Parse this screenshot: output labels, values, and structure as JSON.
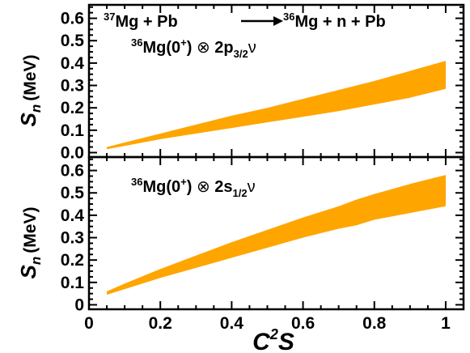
{
  "colors": {
    "band": "#FFA500",
    "axis": "#000000"
  },
  "annotations": {
    "reaction": {
      "a_mass": "37",
      "a_el": "Mg + Pb",
      "b_mass": "36",
      "b_el": "Mg + n + Pb"
    },
    "config_top": {
      "mass": "36",
      "el": "Mg(0",
      "sign": "+",
      "close": ") ",
      "otimes": "⊗",
      "orbital": " 2p",
      "j": "3/2",
      "nu": "ν"
    },
    "config_bottom": {
      "mass": "36",
      "el": "Mg(0",
      "sign": "+",
      "close": ") ",
      "otimes": "⊗",
      "orbital": " 2s",
      "j": "1/2",
      "nu": "ν"
    }
  },
  "axes": {
    "x_label_main": "C",
    "x_label_sup": "2",
    "x_label_end": "S",
    "y_label_main": "S",
    "y_label_sub": "n",
    "y_label_unit": "(MeV)"
  },
  "chart_data": [
    {
      "type": "area",
      "panel": "top",
      "x": [
        0.05,
        0.1,
        0.2,
        0.3,
        0.4,
        0.5,
        0.6,
        0.7,
        0.8,
        0.9,
        1.0
      ],
      "series": [
        {
          "role": "lower",
          "values": [
            0.015,
            0.03,
            0.06,
            0.085,
            0.11,
            0.135,
            0.16,
            0.185,
            0.215,
            0.245,
            0.285
          ]
        },
        {
          "role": "upper",
          "values": [
            0.025,
            0.045,
            0.085,
            0.125,
            0.165,
            0.2,
            0.24,
            0.28,
            0.32,
            0.365,
            0.41
          ]
        }
      ],
      "xlim": [
        0,
        1.05
      ],
      "ylim": [
        -0.02,
        0.66
      ],
      "yticks": [
        "0.0",
        "0.1",
        "0.2",
        "0.3",
        "0.4",
        "0.5",
        "0.6"
      ],
      "ytick_values": [
        0,
        0.1,
        0.2,
        0.3,
        0.4,
        0.5,
        0.6
      ],
      "xticks": [],
      "grid": false
    },
    {
      "type": "area",
      "panel": "bottom",
      "x": [
        0.05,
        0.1,
        0.2,
        0.3,
        0.4,
        0.5,
        0.6,
        0.7,
        0.75,
        0.8,
        0.9,
        1.0
      ],
      "series": [
        {
          "role": "lower",
          "values": [
            0.045,
            0.07,
            0.12,
            0.165,
            0.21,
            0.255,
            0.3,
            0.34,
            0.355,
            0.38,
            0.41,
            0.44
          ]
        },
        {
          "role": "upper",
          "values": [
            0.06,
            0.095,
            0.16,
            0.22,
            0.28,
            0.335,
            0.39,
            0.44,
            0.47,
            0.495,
            0.54,
            0.58
          ]
        }
      ],
      "xlim": [
        0,
        1.05
      ],
      "ylim": [
        -0.02,
        0.66
      ],
      "yticks": [
        "0",
        "0.1",
        "0.2",
        "0.3",
        "0.4",
        "0.5",
        "0.6"
      ],
      "ytick_values": [
        0,
        0.1,
        0.2,
        0.3,
        0.4,
        0.5,
        0.6
      ],
      "xticks": [
        "0",
        "0.2",
        "0.4",
        "0.6",
        "0.8",
        "1"
      ],
      "xtick_values": [
        0,
        0.2,
        0.4,
        0.6,
        0.8,
        1
      ],
      "grid": false
    }
  ]
}
